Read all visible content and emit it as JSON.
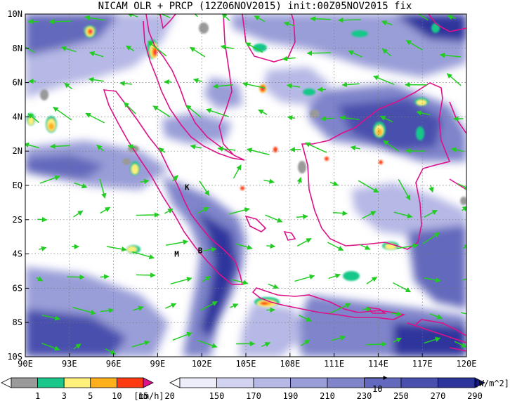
{
  "title": "NICAM OLR + PRCP (12Z06NOV2015) init:00Z05NOV2015 fix",
  "map": {
    "lon_range": [
      90,
      120
    ],
    "lat_range": [
      -10,
      10
    ],
    "x_tick_labels": [
      "90E",
      "93E",
      "96E",
      "99E",
      "102E",
      "105E",
      "108E",
      "111E",
      "114E",
      "117E",
      "120E"
    ],
    "y_tick_labels": [
      "10S",
      "8S",
      "6S",
      "4S",
      "2S",
      "EQ",
      "2N",
      "4N",
      "6N",
      "8N",
      "10N"
    ],
    "places": [
      {
        "label": "K",
        "lon": 101.0,
        "lat": -0.1
      },
      {
        "label": "M",
        "lon": 100.3,
        "lat": -4.0
      },
      {
        "label": "B",
        "lon": 101.9,
        "lat": -3.8
      }
    ],
    "coast_color": "#dd1188",
    "wind_color": "#22cc22",
    "reference_vector_label": "10"
  },
  "precip_colorbar": {
    "labels": [
      "1",
      "3",
      "5",
      "10",
      "15",
      "20"
    ],
    "unit": "[mm/h]",
    "colors": [
      "#ffffff",
      "#9a9a9a",
      "#19c78a",
      "#fff07a",
      "#ffb01a",
      "#ff3a10",
      "#e0108a"
    ]
  },
  "olr_colorbar": {
    "labels": [
      "150",
      "170",
      "190",
      "210",
      "230",
      "250",
      "270",
      "290"
    ],
    "unit": "[W/m^2]",
    "colors": [
      "#ffffff",
      "#eeeefb",
      "#d2d3f0",
      "#b6b8e5",
      "#9a9ed8",
      "#7f84cb",
      "#6369bc",
      "#484fad",
      "#2d359c",
      "#151c8c"
    ]
  }
}
